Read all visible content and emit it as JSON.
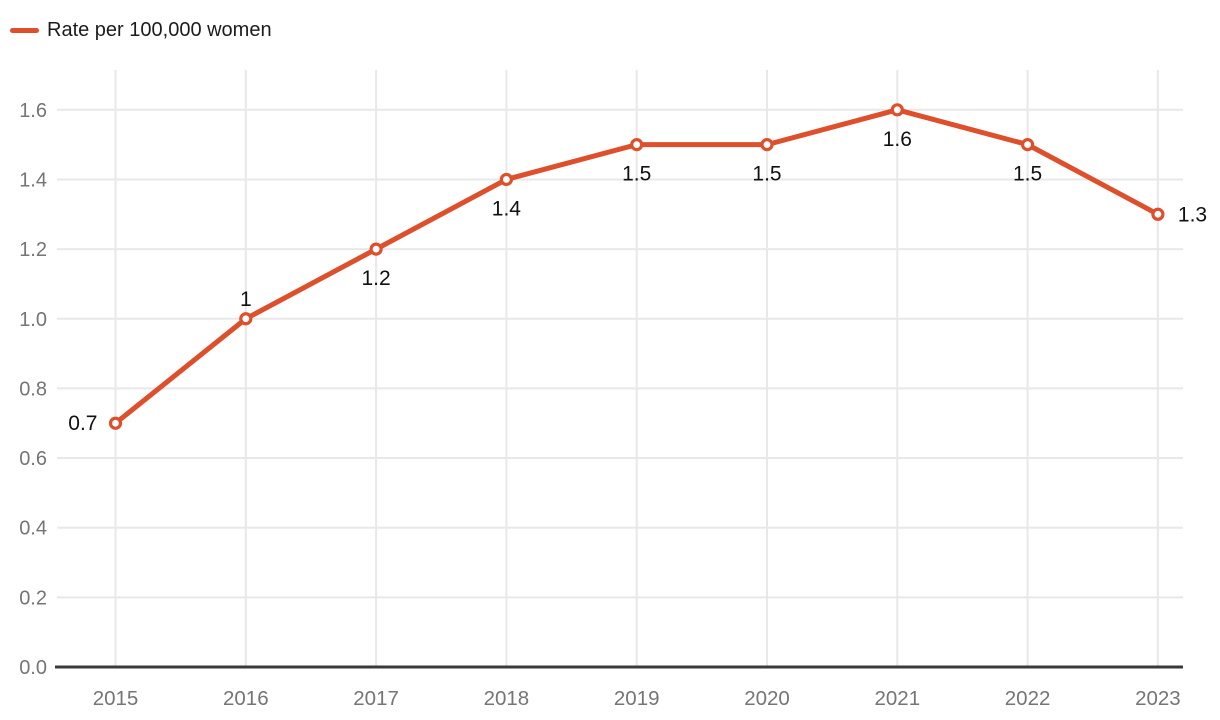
{
  "page": {
    "background": "#ffffff"
  },
  "legend": {
    "label": "Rate per 100,000 women"
  },
  "chart_data": {
    "type": "line",
    "title": "",
    "xlabel": "",
    "ylabel": "",
    "categories": [
      "2015",
      "2016",
      "2017",
      "2018",
      "2019",
      "2020",
      "2021",
      "2022",
      "2023"
    ],
    "series": [
      {
        "name": "Rate per 100,000 women",
        "values": [
          0.7,
          1,
          1.2,
          1.4,
          1.5,
          1.5,
          1.6,
          1.5,
          1.3
        ]
      }
    ],
    "data_labels": [
      "0.7",
      "1",
      "1.2",
      "1.4",
      "1.5",
      "1.5",
      "1.6",
      "1.5",
      "1.3"
    ],
    "data_label_positions": [
      "left",
      "top",
      "bottom",
      "bottom",
      "bottom",
      "bottom",
      "bottom",
      "bottom",
      "right"
    ],
    "y_ticks": [
      0.0,
      0.2,
      0.4,
      0.6,
      0.8,
      1.0,
      1.2,
      1.4,
      1.6
    ],
    "y_tick_labels": [
      "0.0",
      "0.2",
      "0.4",
      "0.6",
      "0.8",
      "1.0",
      "1.2",
      "1.4",
      "1.6"
    ],
    "ylim": [
      0,
      1.7
    ],
    "grid": true,
    "legend_position": "top-left",
    "colors": {
      "series": "#de4f2b",
      "marker_fill": "#ffffff",
      "gridline": "#e8e8e8",
      "axis_line": "#3a3a3a",
      "tick_label": "#757575",
      "data_label": "#111111",
      "legend_text": "#1c1c1c"
    }
  }
}
